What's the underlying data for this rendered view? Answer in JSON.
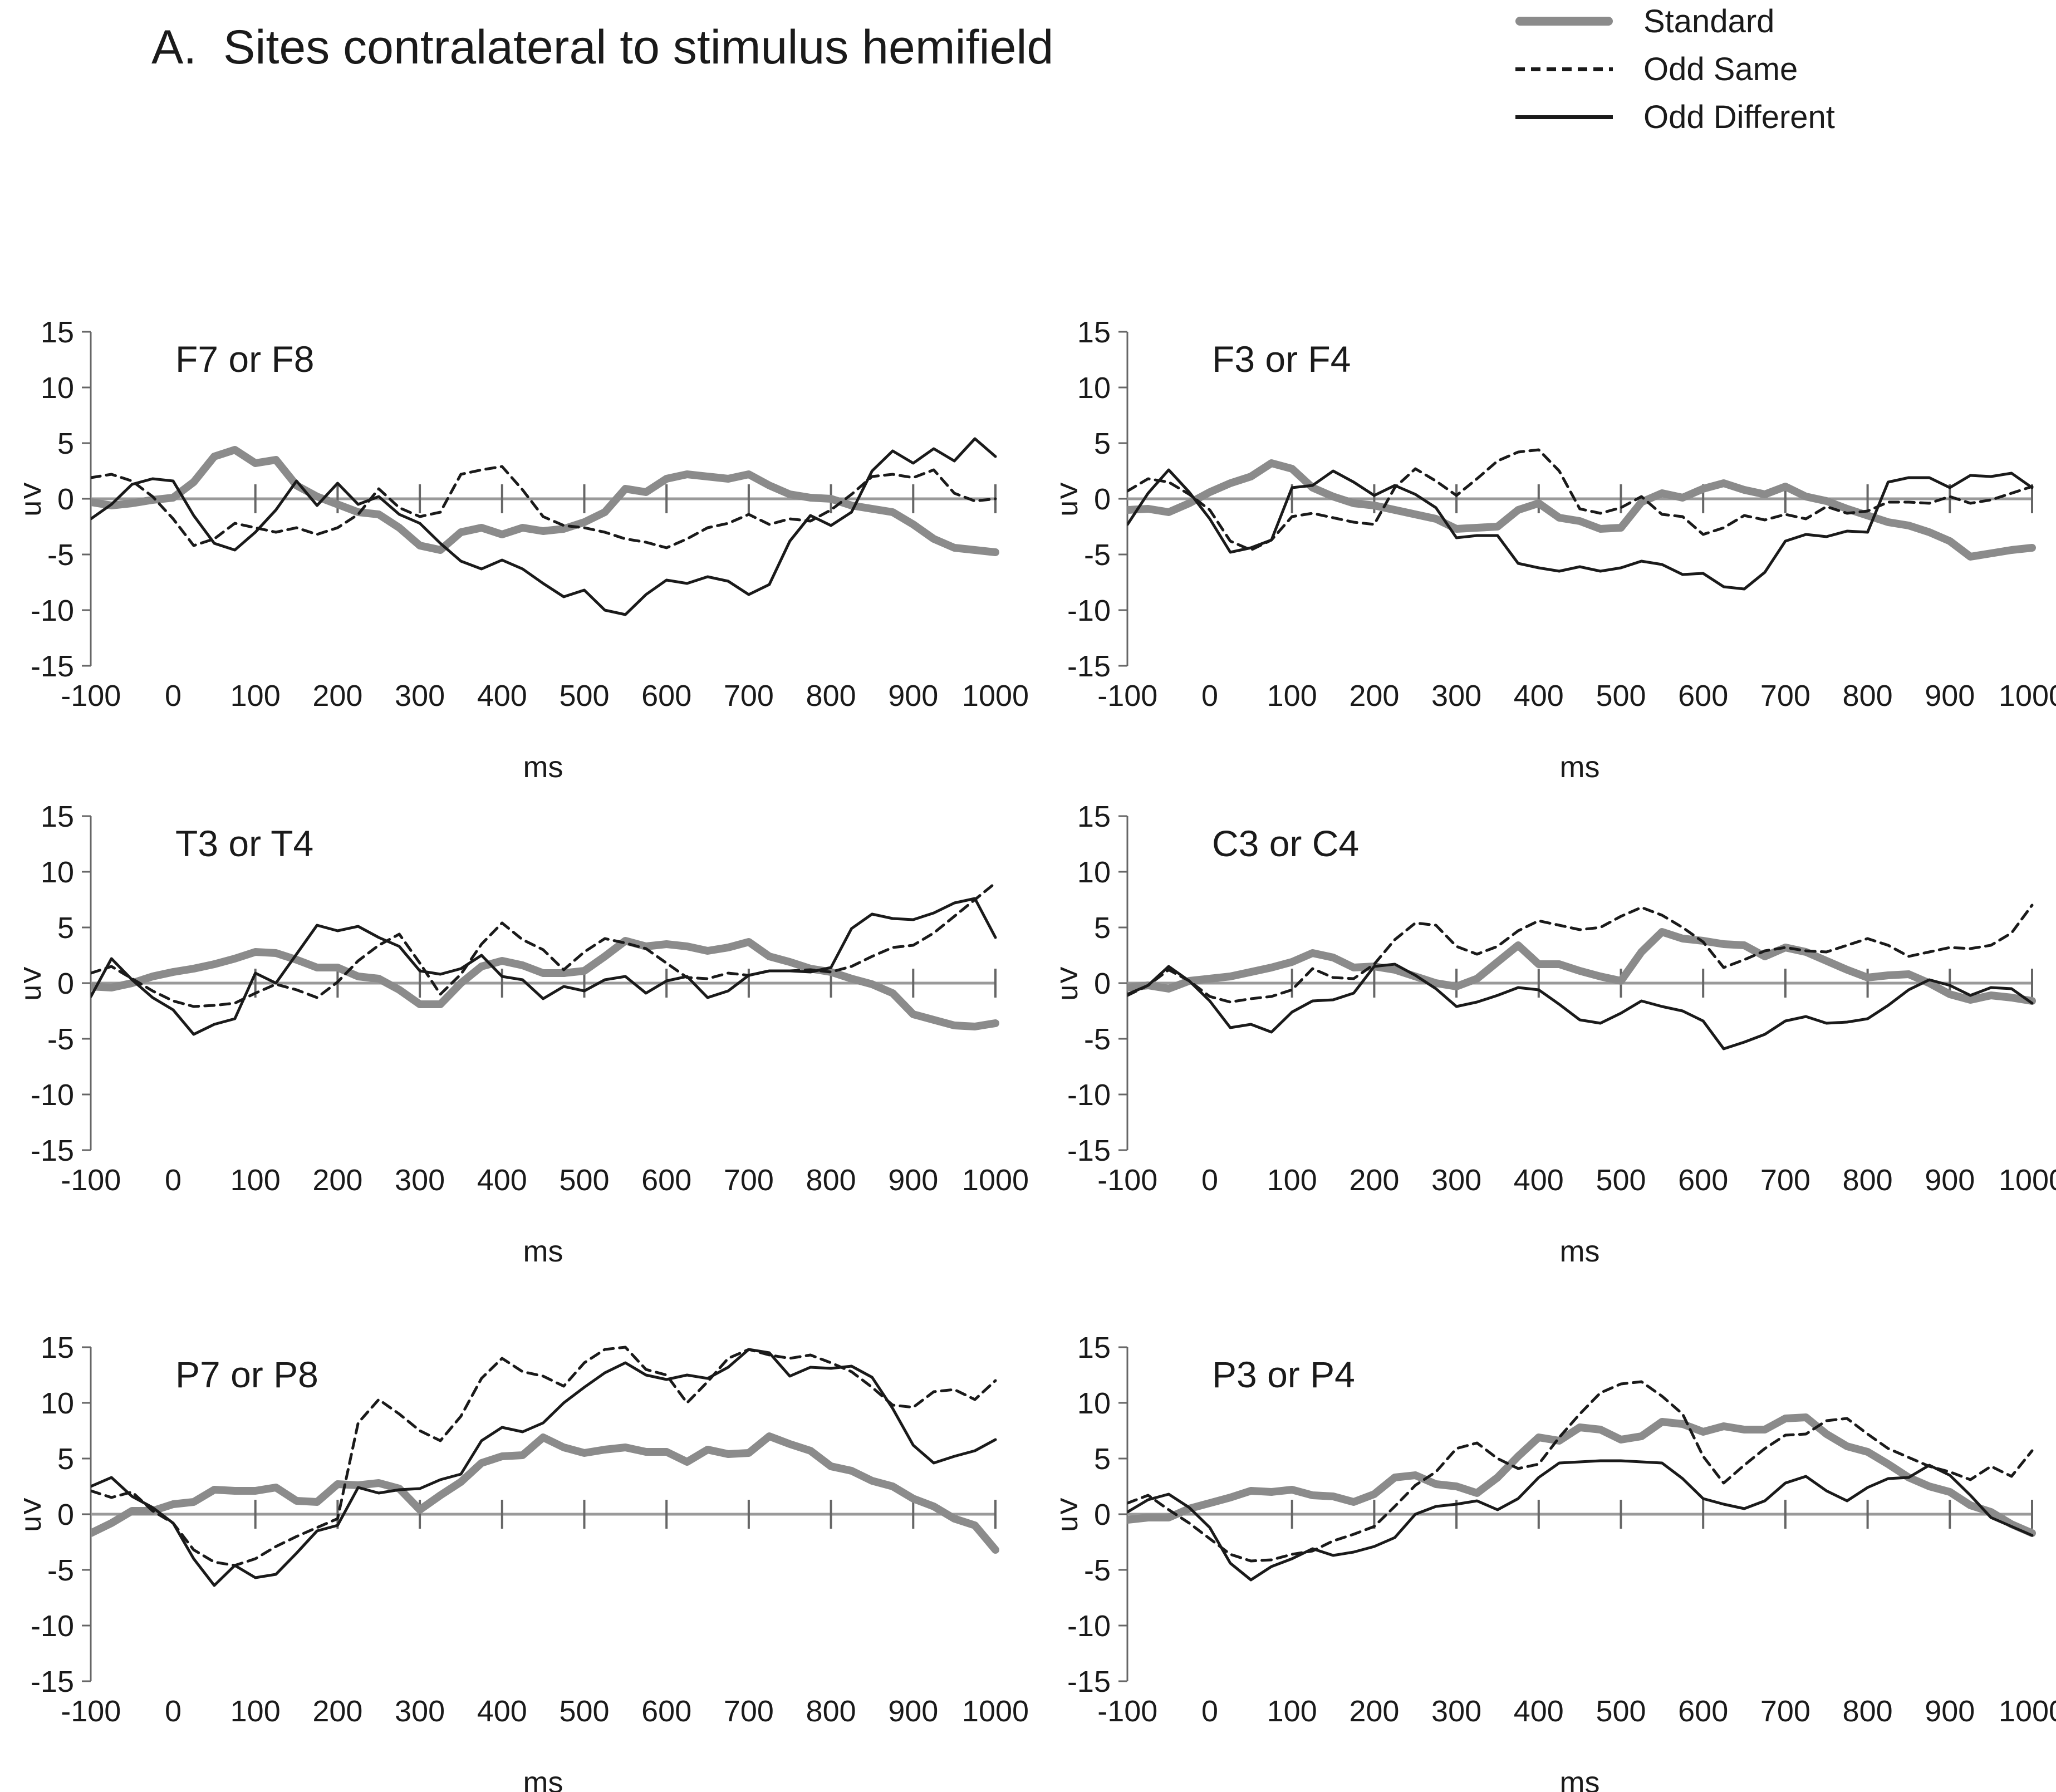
{
  "title": "A.  Sites contralateral to stimulus hemifield",
  "legend": {
    "items": [
      {
        "key": "standard",
        "label": "Standard",
        "color": "#8b8b8b",
        "width": 14,
        "dash": null
      },
      {
        "key": "odd_same",
        "label": "Odd Same",
        "color": "#1a1a1a",
        "width": 5,
        "dash": "17 11"
      },
      {
        "key": "odd_diff",
        "label": "Odd Different",
        "color": "#1a1a1a",
        "width": 5,
        "dash": null
      }
    ]
  },
  "colors": {
    "standard_line": "#8b8b8b",
    "odd_line": "#1a1a1a",
    "zero_line": "#9a9a9a",
    "axis": "#666666",
    "text": "#1a1a1a"
  },
  "chart_data": {
    "type": "line",
    "xlabel": "ms",
    "ylabel": "uV",
    "xlim": [
      -100,
      1000
    ],
    "ylim": [
      -15,
      15
    ],
    "x_tick_step": 100,
    "y_tick_step": 5,
    "grid": false,
    "legend_position": "top-right",
    "x": [
      -100,
      -75,
      -50,
      -25,
      0,
      25,
      50,
      75,
      100,
      125,
      150,
      175,
      200,
      225,
      250,
      275,
      300,
      325,
      350,
      375,
      400,
      425,
      450,
      475,
      500,
      525,
      550,
      575,
      600,
      625,
      650,
      675,
      700,
      725,
      750,
      775,
      800,
      825,
      850,
      875,
      900,
      925,
      950,
      975,
      1000
    ],
    "panels": [
      {
        "site": "F7 or F8",
        "series": {
          "standard": [
            -0.3,
            -0.6,
            -0.4,
            -0.1,
            0.1,
            1.5,
            3.8,
            4.4,
            3.2,
            3.5,
            1.2,
            0.2,
            -0.5,
            -1.2,
            -1.4,
            -2.6,
            -4.2,
            -4.6,
            -3.0,
            -2.6,
            -3.2,
            -2.6,
            -2.9,
            -2.7,
            -2.1,
            -1.2,
            0.9,
            0.6,
            1.8,
            2.2,
            2.0,
            1.8,
            2.2,
            1.2,
            0.4,
            0.1,
            0.0,
            -0.6,
            -0.9,
            -1.2,
            -2.3,
            -3.6,
            -4.4,
            -4.6,
            -4.8
          ],
          "odd_same": [
            1.9,
            2.2,
            1.6,
            0.2,
            -1.8,
            -4.2,
            -3.6,
            -2.2,
            -2.6,
            -3.0,
            -2.6,
            -3.2,
            -2.6,
            -1.4,
            0.9,
            -0.8,
            -1.6,
            -1.2,
            2.2,
            2.6,
            2.9,
            0.8,
            -1.6,
            -2.4,
            -2.6,
            -3.0,
            -3.6,
            -3.9,
            -4.4,
            -3.6,
            -2.6,
            -2.2,
            -1.4,
            -2.3,
            -1.8,
            -2.0,
            -1.0,
            0.4,
            2.0,
            2.2,
            1.9,
            2.6,
            0.5,
            -0.2,
            0.0
          ],
          "odd_diff": [
            -1.8,
            -0.5,
            1.3,
            1.8,
            1.6,
            -1.5,
            -4.0,
            -4.6,
            -3.0,
            -1.0,
            1.6,
            -0.6,
            1.4,
            -0.5,
            0.2,
            -1.4,
            -2.2,
            -4.0,
            -5.6,
            -6.3,
            -5.5,
            -6.3,
            -7.6,
            -8.8,
            -8.2,
            -10.0,
            -10.4,
            -8.6,
            -7.3,
            -7.6,
            -7.0,
            -7.4,
            -8.6,
            -7.7,
            -3.8,
            -1.5,
            -2.4,
            -1.2,
            2.5,
            4.3,
            3.2,
            4.5,
            3.4,
            5.4,
            3.8
          ]
        }
      },
      {
        "site": "F3 or F4",
        "series": {
          "standard": [
            -1.0,
            -0.9,
            -1.2,
            -0.4,
            0.6,
            1.4,
            2.0,
            3.2,
            2.7,
            1.0,
            0.2,
            -0.4,
            -0.6,
            -1.0,
            -1.4,
            -1.8,
            -2.7,
            -2.6,
            -2.5,
            -1.0,
            -0.4,
            -1.7,
            -2.0,
            -2.7,
            -2.6,
            -0.3,
            0.5,
            0.1,
            0.9,
            1.4,
            0.8,
            0.4,
            1.1,
            0.2,
            -0.2,
            -0.9,
            -1.5,
            -2.1,
            -2.4,
            -3.0,
            -3.8,
            -5.2,
            -4.9,
            -4.6,
            -4.4
          ],
          "odd_same": [
            0.7,
            1.8,
            1.5,
            0.4,
            -1.0,
            -3.8,
            -4.6,
            -3.7,
            -1.6,
            -1.3,
            -1.7,
            -2.1,
            -2.3,
            1.0,
            2.7,
            1.6,
            0.3,
            1.8,
            3.4,
            4.2,
            4.4,
            2.5,
            -0.9,
            -1.3,
            -0.8,
            0.2,
            -1.4,
            -1.6,
            -3.2,
            -2.6,
            -1.5,
            -1.9,
            -1.4,
            -1.8,
            -0.7,
            -1.3,
            -1.1,
            -0.3,
            -0.3,
            -0.4,
            0.2,
            -0.4,
            -0.1,
            0.5,
            1.1
          ],
          "odd_diff": [
            -2.3,
            0.5,
            2.6,
            0.6,
            -1.8,
            -4.8,
            -4.4,
            -3.7,
            1.0,
            1.2,
            2.5,
            1.5,
            0.3,
            1.2,
            0.4,
            -0.8,
            -3.5,
            -3.3,
            -3.3,
            -5.8,
            -6.2,
            -6.5,
            -6.1,
            -6.5,
            -6.2,
            -5.6,
            -5.9,
            -6.8,
            -6.7,
            -7.9,
            -8.1,
            -6.6,
            -3.8,
            -3.2,
            -3.4,
            -2.9,
            -3.0,
            1.5,
            1.9,
            1.9,
            1.0,
            2.1,
            2.0,
            2.3,
            1.0
          ]
        }
      },
      {
        "site": "T3 or T4",
        "series": {
          "standard": [
            -0.3,
            -0.4,
            0.0,
            0.6,
            1.0,
            1.3,
            1.7,
            2.2,
            2.8,
            2.7,
            2.1,
            1.4,
            1.4,
            0.6,
            0.4,
            -0.6,
            -1.9,
            -1.9,
            0.0,
            1.5,
            2.0,
            1.6,
            0.9,
            0.9,
            1.1,
            2.4,
            3.8,
            3.3,
            3.5,
            3.3,
            2.9,
            3.2,
            3.7,
            2.4,
            1.9,
            1.3,
            1.0,
            0.4,
            -0.1,
            -0.9,
            -2.8,
            -3.3,
            -3.8,
            -3.9,
            -3.6
          ],
          "odd_same": [
            0.9,
            1.5,
            0.4,
            -0.7,
            -1.6,
            -2.1,
            -2.0,
            -1.8,
            -0.9,
            -0.1,
            -0.6,
            -1.3,
            0.1,
            2.0,
            3.4,
            4.4,
            1.8,
            -1.0,
            0.8,
            3.5,
            5.4,
            3.9,
            3.0,
            1.2,
            2.8,
            4.0,
            3.6,
            3.1,
            1.8,
            0.5,
            0.4,
            0.9,
            0.7,
            1.1,
            1.1,
            1.2,
            1.0,
            1.5,
            2.4,
            3.2,
            3.4,
            4.5,
            6.0,
            7.5,
            9.0
          ],
          "odd_diff": [
            -1.2,
            2.2,
            0.3,
            -1.3,
            -2.4,
            -4.6,
            -3.7,
            -3.2,
            0.9,
            0.0,
            2.6,
            5.2,
            4.7,
            5.1,
            4.1,
            3.3,
            1.1,
            0.8,
            1.3,
            2.5,
            0.6,
            0.3,
            -1.4,
            -0.3,
            -0.7,
            0.3,
            0.6,
            -0.9,
            0.2,
            0.6,
            -1.3,
            -0.7,
            0.7,
            1.1,
            1.1,
            1.0,
            1.4,
            4.9,
            6.2,
            5.8,
            5.7,
            6.3,
            7.2,
            7.6,
            4.1
          ]
        }
      },
      {
        "site": "C3 or C4",
        "series": {
          "standard": [
            -0.4,
            -0.2,
            -0.5,
            0.2,
            0.4,
            0.6,
            1.0,
            1.4,
            1.9,
            2.7,
            2.3,
            1.4,
            1.5,
            1.2,
            0.6,
            0.0,
            -0.3,
            0.4,
            1.9,
            3.4,
            1.7,
            1.7,
            1.1,
            0.6,
            0.2,
            2.8,
            4.6,
            4.0,
            3.8,
            3.5,
            3.4,
            2.4,
            3.2,
            2.8,
            2.0,
            1.2,
            0.5,
            0.7,
            0.8,
            0.0,
            -1.0,
            -1.5,
            -1.1,
            -1.3,
            -1.6
          ],
          "odd_same": [
            -1.1,
            -0.2,
            1.2,
            0.2,
            -1.2,
            -1.7,
            -1.4,
            -1.2,
            -0.6,
            1.3,
            0.5,
            0.4,
            1.7,
            3.9,
            5.4,
            5.2,
            3.3,
            2.6,
            3.3,
            4.7,
            5.6,
            5.2,
            4.8,
            5.0,
            6.0,
            6.8,
            6.1,
            5.0,
            3.7,
            1.4,
            2.1,
            2.9,
            3.2,
            2.9,
            2.8,
            3.4,
            4.0,
            3.4,
            2.4,
            2.8,
            3.2,
            3.1,
            3.4,
            4.5,
            7.0
          ],
          "odd_diff": [
            -1.0,
            -0.2,
            1.5,
            0.2,
            -1.6,
            -4.0,
            -3.7,
            -4.4,
            -2.6,
            -1.6,
            -1.5,
            -0.9,
            1.5,
            1.7,
            0.7,
            -0.5,
            -2.1,
            -1.7,
            -1.1,
            -0.4,
            -0.6,
            -1.9,
            -3.3,
            -3.6,
            -2.7,
            -1.6,
            -2.1,
            -2.5,
            -3.4,
            -5.9,
            -5.3,
            -4.6,
            -3.4,
            -3.0,
            -3.6,
            -3.5,
            -3.2,
            -2.0,
            -0.6,
            0.3,
            -0.2,
            -1.1,
            -0.4,
            -0.5,
            -1.8
          ]
        }
      },
      {
        "site": "P7 or P8",
        "series": {
          "standard": [
            -1.7,
            -0.8,
            0.3,
            0.3,
            0.9,
            1.1,
            2.2,
            2.1,
            2.1,
            2.4,
            1.2,
            1.1,
            2.7,
            2.6,
            2.8,
            2.3,
            0.4,
            1.7,
            2.9,
            4.6,
            5.2,
            5.3,
            6.9,
            6.0,
            5.5,
            5.8,
            6.0,
            5.6,
            5.6,
            4.7,
            5.8,
            5.4,
            5.5,
            7.0,
            6.3,
            5.7,
            4.3,
            3.9,
            3.0,
            2.5,
            1.4,
            0.7,
            -0.4,
            -1.0,
            -3.2
          ],
          "odd_same": [
            2.1,
            1.5,
            2.0,
            0.3,
            -0.8,
            -3.2,
            -4.3,
            -4.6,
            -4.0,
            -2.9,
            -2.0,
            -1.2,
            -0.4,
            8.2,
            10.3,
            9.0,
            7.5,
            6.6,
            8.8,
            12.2,
            14.0,
            12.8,
            12.4,
            11.5,
            13.6,
            14.8,
            15.0,
            13.0,
            12.5,
            10.0,
            11.9,
            14.0,
            14.8,
            14.3,
            14.0,
            14.3,
            13.6,
            12.8,
            11.4,
            9.8,
            9.6,
            11.0,
            11.2,
            10.3,
            12.0
          ],
          "odd_diff": [
            2.5,
            3.3,
            1.6,
            0.6,
            -0.8,
            -4.0,
            -6.4,
            -4.6,
            -5.7,
            -5.4,
            -3.5,
            -1.5,
            -1.0,
            2.4,
            1.9,
            2.2,
            2.3,
            3.1,
            3.6,
            6.6,
            7.8,
            7.4,
            8.2,
            10.0,
            11.4,
            12.7,
            13.6,
            12.5,
            12.1,
            12.5,
            12.2,
            13.2,
            14.8,
            14.5,
            12.4,
            13.2,
            13.1,
            13.3,
            12.3,
            9.5,
            6.2,
            4.6,
            5.2,
            5.7,
            6.7
          ]
        }
      },
      {
        "site": "P3 or P4",
        "series": {
          "standard": [
            -0.5,
            -0.3,
            -0.3,
            0.5,
            1.0,
            1.5,
            2.1,
            2.0,
            2.2,
            1.7,
            1.6,
            1.1,
            1.8,
            3.3,
            3.5,
            2.7,
            2.5,
            1.9,
            3.3,
            5.2,
            6.9,
            6.6,
            7.8,
            7.6,
            6.7,
            7.0,
            8.3,
            8.1,
            7.4,
            7.9,
            7.6,
            7.6,
            8.6,
            8.7,
            7.2,
            6.1,
            5.6,
            4.5,
            3.3,
            2.5,
            2.0,
            0.8,
            0.2,
            -0.9,
            -1.7
          ],
          "odd_same": [
            1.0,
            1.7,
            0.4,
            -0.8,
            -2.2,
            -3.6,
            -4.2,
            -4.1,
            -3.6,
            -3.3,
            -2.4,
            -1.8,
            -1.1,
            0.7,
            2.6,
            3.8,
            5.9,
            6.4,
            5.0,
            4.1,
            4.5,
            6.9,
            9.0,
            10.9,
            11.7,
            11.9,
            10.6,
            9.0,
            5.2,
            2.8,
            4.4,
            5.9,
            7.1,
            7.2,
            8.4,
            8.6,
            7.2,
            5.9,
            5.1,
            4.3,
            3.8,
            3.1,
            4.3,
            3.4,
            5.7
          ],
          "odd_diff": [
            0.2,
            1.3,
            1.8,
            0.6,
            -1.2,
            -4.4,
            -5.9,
            -4.7,
            -4.0,
            -3.1,
            -3.7,
            -3.4,
            -2.9,
            -2.1,
            0.0,
            0.7,
            0.9,
            1.2,
            0.4,
            1.4,
            3.3,
            4.6,
            4.7,
            4.8,
            4.8,
            4.7,
            4.6,
            3.2,
            1.4,
            0.9,
            0.5,
            1.2,
            2.8,
            3.4,
            2.1,
            1.2,
            2.4,
            3.2,
            3.3,
            4.4,
            3.5,
            1.7,
            -0.3,
            -1.1,
            -1.9
          ]
        }
      }
    ]
  }
}
